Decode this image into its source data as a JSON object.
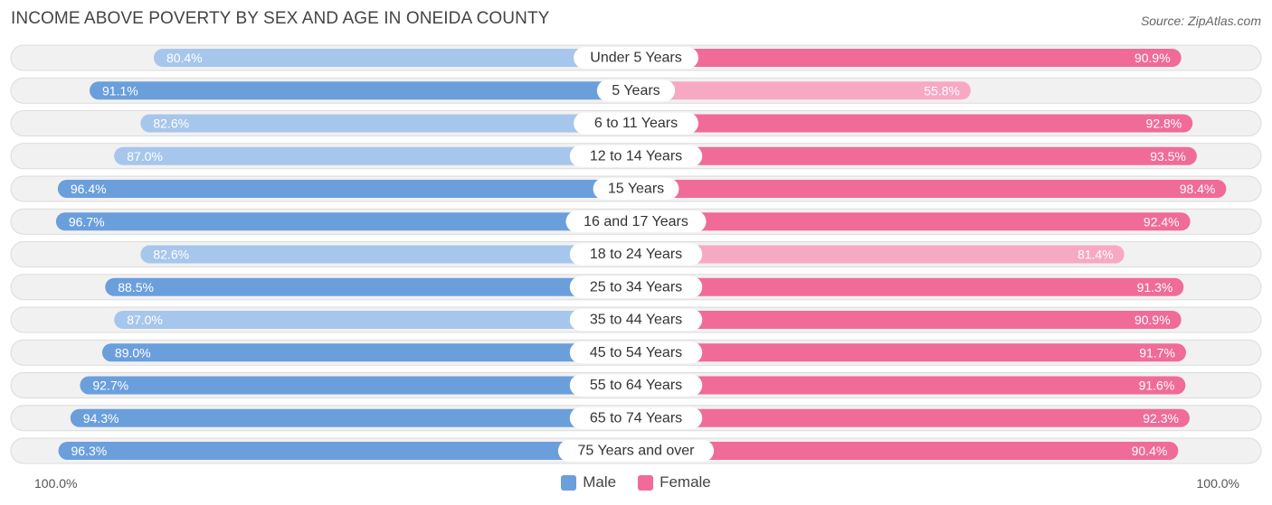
{
  "title": "INCOME ABOVE POVERTY BY SEX AND AGE IN ONEIDA COUNTY",
  "source": "Source: ZipAtlas.com",
  "axis": {
    "left_label": "100.0%",
    "right_label": "100.0%"
  },
  "legend": {
    "male": "Male",
    "female": "Female"
  },
  "colors": {
    "male_strong": "#6a9fdc",
    "male_light": "#a7c6ec",
    "female_strong": "#f06b98",
    "female_light": "#f7a9c4",
    "row_bg": "#f1f1f1",
    "row_border": "#dcdcdc"
  },
  "chart_data": {
    "type": "bar",
    "orientation": "horizontal-diverging",
    "title": "INCOME ABOVE POVERTY BY SEX AND AGE IN ONEIDA COUNTY",
    "xlim": [
      0,
      100
    ],
    "categories": [
      "Under 5 Years",
      "5 Years",
      "6 to 11 Years",
      "12 to 14 Years",
      "15 Years",
      "16 and 17 Years",
      "18 to 24 Years",
      "25 to 34 Years",
      "35 to 44 Years",
      "45 to 54 Years",
      "55 to 64 Years",
      "65 to 74 Years",
      "75 Years and over"
    ],
    "series": [
      {
        "name": "Male",
        "values": [
          80.4,
          91.1,
          82.6,
          87.0,
          96.4,
          96.7,
          82.6,
          88.5,
          87.0,
          89.0,
          92.7,
          94.3,
          96.3
        ],
        "labels": [
          "80.4%",
          "91.1%",
          "82.6%",
          "87.0%",
          "96.4%",
          "96.7%",
          "82.6%",
          "88.5%",
          "87.0%",
          "89.0%",
          "92.7%",
          "94.3%",
          "96.3%"
        ]
      },
      {
        "name": "Female",
        "values": [
          90.9,
          55.8,
          92.8,
          93.5,
          98.4,
          92.4,
          81.4,
          91.3,
          90.9,
          91.7,
          91.6,
          92.3,
          90.4
        ],
        "labels": [
          "90.9%",
          "55.8%",
          "92.8%",
          "93.5%",
          "98.4%",
          "92.4%",
          "81.4%",
          "91.3%",
          "90.9%",
          "91.7%",
          "91.6%",
          "92.3%",
          "90.4%"
        ]
      }
    ]
  }
}
